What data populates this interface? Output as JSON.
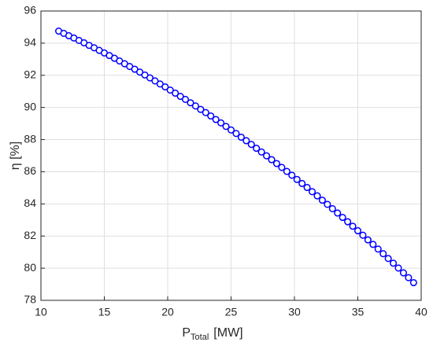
{
  "chart_data": {
    "type": "line",
    "marker": "circle",
    "xlabel": {
      "main": "P",
      "sub": "Total",
      "unit": "[MW]"
    },
    "ylabel": "η [%]",
    "xlim": [
      10,
      40
    ],
    "xticks": [
      10,
      15,
      20,
      25,
      30,
      35,
      40
    ],
    "ylim": [
      78,
      96
    ],
    "yticks": [
      78,
      80,
      82,
      84,
      86,
      88,
      90,
      92,
      94,
      96
    ],
    "grid": true,
    "series": [
      {
        "color": "#0000ff",
        "x": [
          11.4,
          11.8,
          12.2,
          12.6,
          13.0,
          13.4,
          13.8,
          14.2,
          14.6,
          15.0,
          15.4,
          15.8,
          16.2,
          16.6,
          17.0,
          17.4,
          17.8,
          18.2,
          18.6,
          19.0,
          19.4,
          19.8,
          20.2,
          20.6,
          21.0,
          21.4,
          21.8,
          22.2,
          22.6,
          23.0,
          23.4,
          23.8,
          24.2,
          24.6,
          25.0,
          25.4,
          25.8,
          26.2,
          26.6,
          27.0,
          27.4,
          27.8,
          28.2,
          28.6,
          29.0,
          29.4,
          29.8,
          30.2,
          30.6,
          31.0,
          31.4,
          31.8,
          32.2,
          32.6,
          33.0,
          33.4,
          33.8,
          34.2,
          34.6,
          35.0,
          35.4,
          35.8,
          36.2,
          36.6,
          37.0,
          37.4,
          37.8,
          38.2,
          38.6,
          39.0,
          39.4
        ],
        "values": [
          94.75,
          94.61,
          94.46,
          94.32,
          94.17,
          94.02,
          93.86,
          93.71,
          93.55,
          93.39,
          93.23,
          93.06,
          92.89,
          92.72,
          92.55,
          92.38,
          92.2,
          92.02,
          91.84,
          91.65,
          91.46,
          91.28,
          91.08,
          90.89,
          90.69,
          90.5,
          90.29,
          90.09,
          89.88,
          89.68,
          89.47,
          89.25,
          89.04,
          88.82,
          88.6,
          88.38,
          88.15,
          87.93,
          87.7,
          87.46,
          87.23,
          86.99,
          86.75,
          86.51,
          86.27,
          86.02,
          85.78,
          85.52,
          85.27,
          85.02,
          84.76,
          84.5,
          84.23,
          83.97,
          83.7,
          83.43,
          83.16,
          82.89,
          82.61,
          82.33,
          82.05,
          81.76,
          81.48,
          81.19,
          80.9,
          80.6,
          80.31,
          80.01,
          79.71,
          79.41,
          79.1
        ]
      }
    ]
  }
}
